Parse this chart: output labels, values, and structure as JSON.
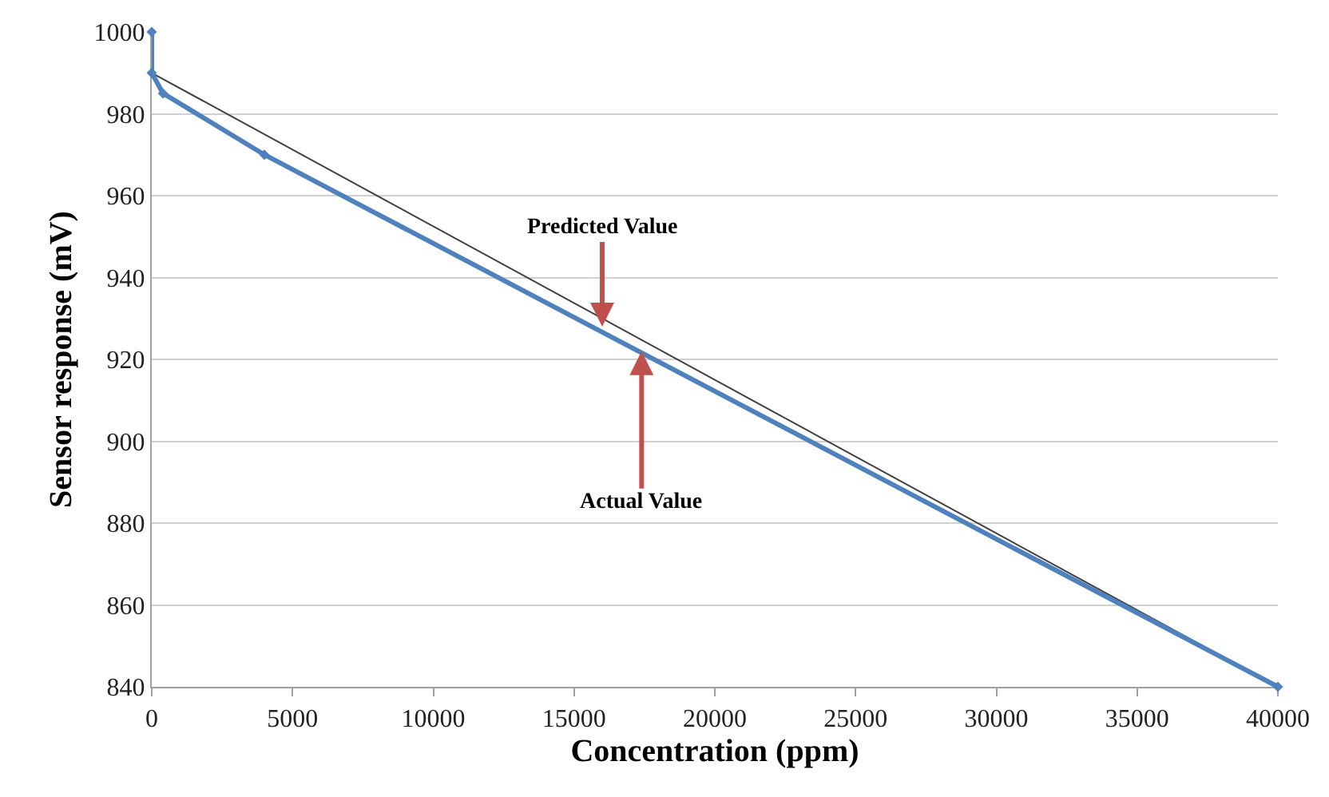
{
  "chart_data": {
    "type": "line",
    "xlabel": "Concentration (ppm)",
    "ylabel": "Sensor response (mV)",
    "series": [
      {
        "color": "#4f81bd",
        "marker": "diamond",
        "x": [
          0,
          0,
          400,
          4000,
          40000
        ],
        "values": [
          1000,
          990,
          985,
          970,
          840
        ]
      },
      {
        "color": "#404040",
        "marker": "none",
        "x": [
          0,
          40000
        ],
        "values": [
          990,
          840
        ]
      }
    ],
    "xlim": [
      0,
      40000
    ],
    "xticks": [
      0,
      5000,
      10000,
      15000,
      20000,
      25000,
      30000,
      35000,
      40000
    ],
    "ylim": [
      840,
      1000
    ],
    "yticks": [
      840,
      860,
      880,
      900,
      920,
      940,
      960,
      980,
      1000
    ],
    "grid": "y",
    "annotations": [
      {
        "text": "Predicted Value",
        "x": 16000,
        "y": 928
      },
      {
        "text": "Actual Value",
        "x": 17400,
        "y": 922
      }
    ]
  }
}
